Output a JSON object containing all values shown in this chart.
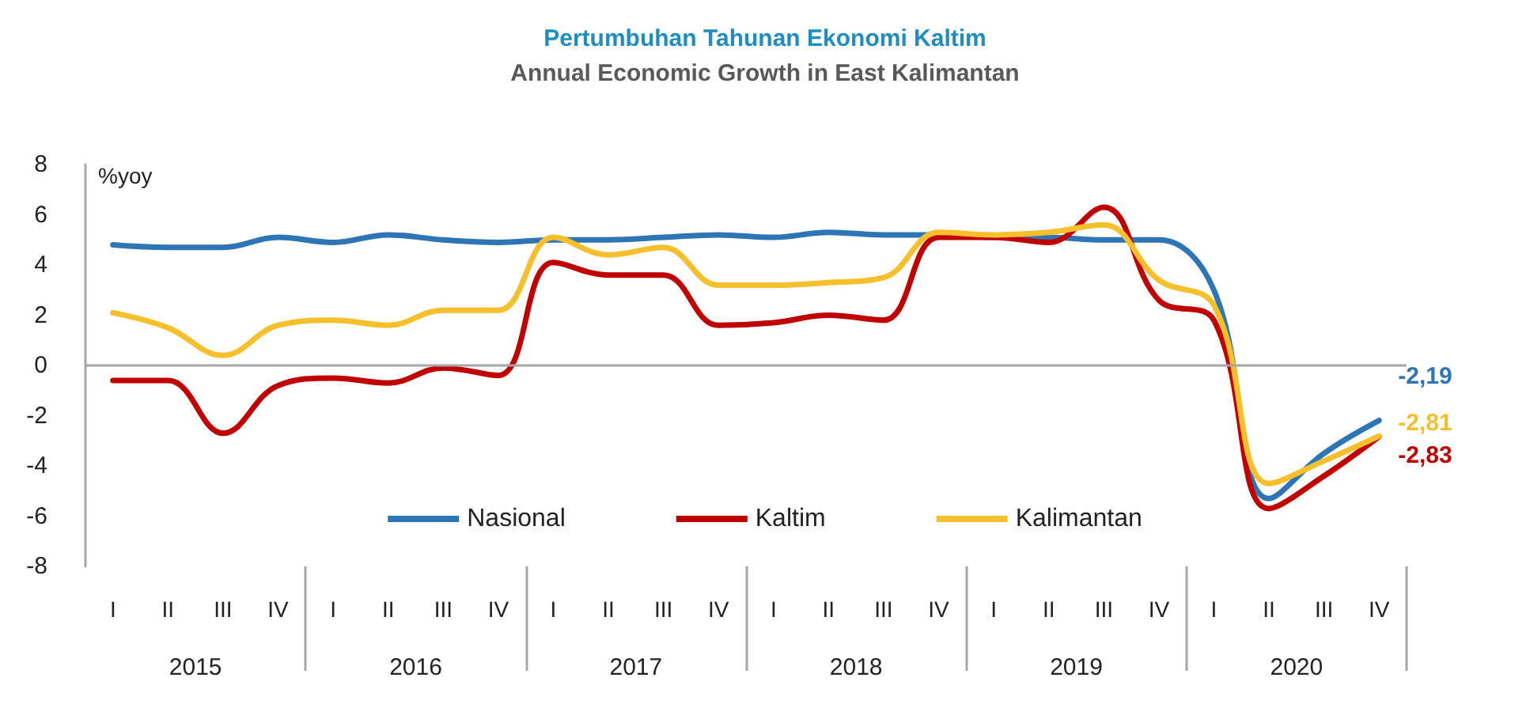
{
  "chart_data": {
    "type": "line",
    "title": "Pertumbuhan Tahunan Ekonomi Kaltim",
    "subtitle": "Annual Economic Growth in East Kalimantan",
    "ylabel": "%yoy",
    "categories": [
      "I",
      "II",
      "III",
      "IV",
      "I",
      "II",
      "III",
      "IV",
      "I",
      "II",
      "III",
      "IV",
      "I",
      "II",
      "III",
      "IV",
      "I",
      "II",
      "III",
      "IV",
      "I",
      "II",
      "III",
      "IV"
    ],
    "series": [
      {
        "name": "Nasional",
        "color": "#2e75b6",
        "values": [
          4.8,
          4.7,
          4.7,
          5.1,
          4.9,
          5.2,
          5.0,
          4.9,
          5.0,
          5.0,
          5.1,
          5.2,
          5.1,
          5.3,
          5.2,
          5.2,
          5.1,
          5.1,
          5.0,
          5.0,
          3.0,
          -5.3,
          -3.5,
          -2.19
        ],
        "value_labels": [
          null,
          null,
          null,
          null,
          null,
          null,
          null,
          null,
          null,
          null,
          null,
          null,
          null,
          null,
          null,
          null,
          null,
          null,
          null,
          null,
          null,
          null,
          null,
          "-2,19"
        ]
      },
      {
        "name": "Kaltim",
        "color": "#c00000",
        "values": [
          -0.6,
          -0.6,
          -2.7,
          -0.8,
          -0.5,
          -0.7,
          -0.1,
          -0.4,
          4.1,
          3.6,
          3.6,
          1.6,
          1.7,
          2.0,
          1.8,
          5.1,
          5.1,
          4.9,
          6.3,
          2.6,
          1.8,
          -5.7,
          -4.4,
          -2.83
        ],
        "value_labels": [
          null,
          null,
          null,
          null,
          null,
          null,
          null,
          null,
          null,
          null,
          null,
          null,
          null,
          null,
          null,
          null,
          null,
          null,
          null,
          null,
          null,
          null,
          null,
          "-2,83"
        ]
      },
      {
        "name": "Kalimantan",
        "color": "#f5c02c",
        "values": [
          2.1,
          1.5,
          0.4,
          1.6,
          1.8,
          1.6,
          2.2,
          2.2,
          5.1,
          4.4,
          4.7,
          3.2,
          3.2,
          3.3,
          3.5,
          5.3,
          5.2,
          5.3,
          5.6,
          3.4,
          2.4,
          -4.7,
          -3.8,
          -2.81
        ],
        "value_labels": [
          null,
          null,
          null,
          null,
          null,
          null,
          null,
          null,
          null,
          null,
          null,
          null,
          null,
          null,
          null,
          null,
          null,
          null,
          null,
          null,
          null,
          null,
          null,
          "-2,81"
        ]
      }
    ],
    "annotations": [
      "2015",
      "2016",
      "2017",
      "2018",
      "2019",
      "2020"
    ],
    "ylim": [
      -8,
      8
    ],
    "yticks": [
      -8,
      -6,
      -4,
      -2,
      0,
      2,
      4,
      6,
      8
    ],
    "ref_lines": [
      {
        "axis": "y",
        "value": 0,
        "label": null,
        "color": "#a6a6a6"
      }
    ],
    "grid": false,
    "legend": "bottom",
    "marker": "none",
    "line_style": "solid"
  }
}
